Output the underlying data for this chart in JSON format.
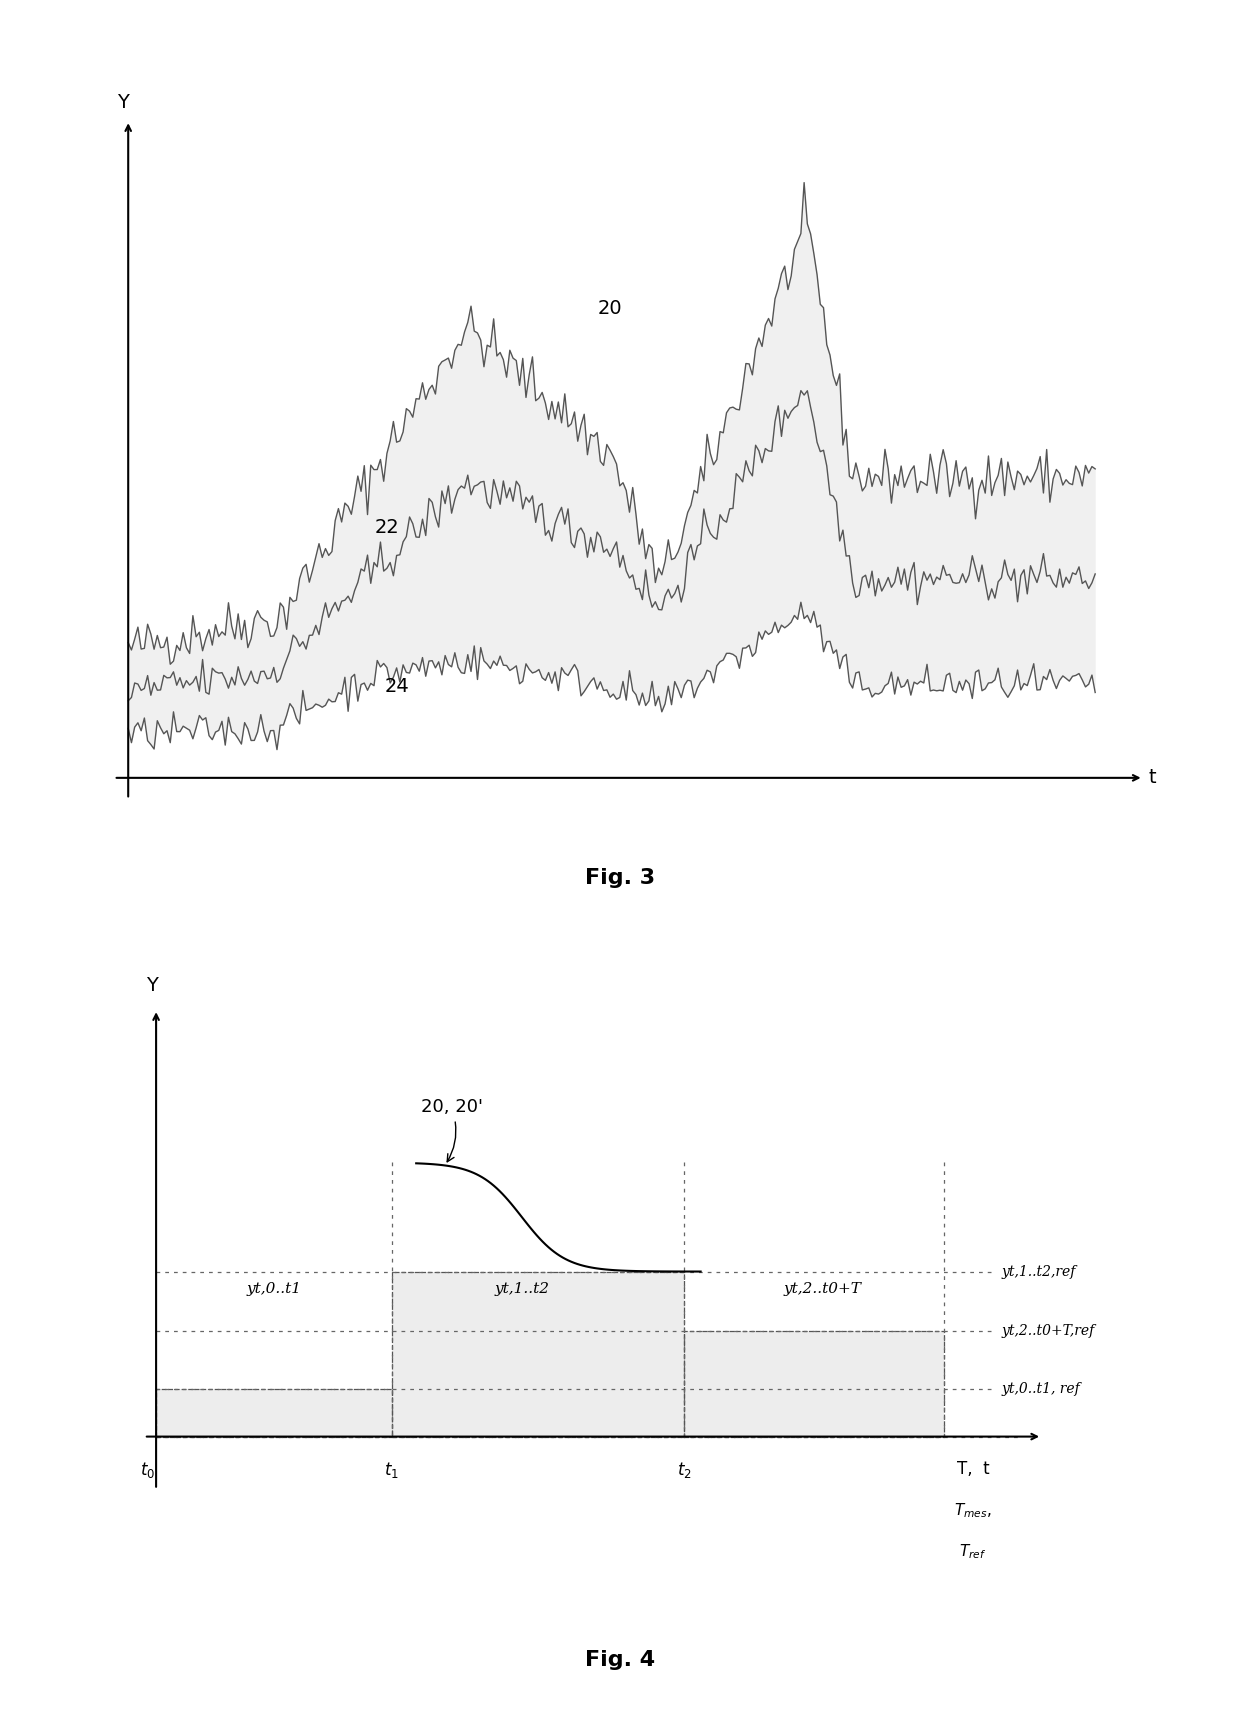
{
  "fig3": {
    "title": "Fig. 3",
    "xlabel": "t",
    "ylabel": "Y",
    "curve20_label": "20",
    "curve22_label": "22",
    "curve24_label": "24",
    "line_color": "#555555",
    "fill_color": "#bbbbbb"
  },
  "fig4": {
    "title": "Fig. 4",
    "ylabel": "Y",
    "curve_label": "20, 20'",
    "region_label1": "yt,0..t1",
    "region_label2": "yt,1..t2",
    "region_label3": "yt,2..t0+T",
    "ref_label1": "yt,1..t2,ref",
    "ref_label2": "yt,2..t0+T,ref",
    "ref_label3": "yt,0..t1, ref",
    "xlab_t0": "t0",
    "xlab_t1": "t1",
    "xlab_t2": "t2",
    "xlab_T": "T,  t",
    "xlab_Tmes": "Tmes,",
    "xlab_Tref": "Tref",
    "line_color": "#000000",
    "dotted_color": "#777777",
    "fill_color": "#cccccc"
  }
}
